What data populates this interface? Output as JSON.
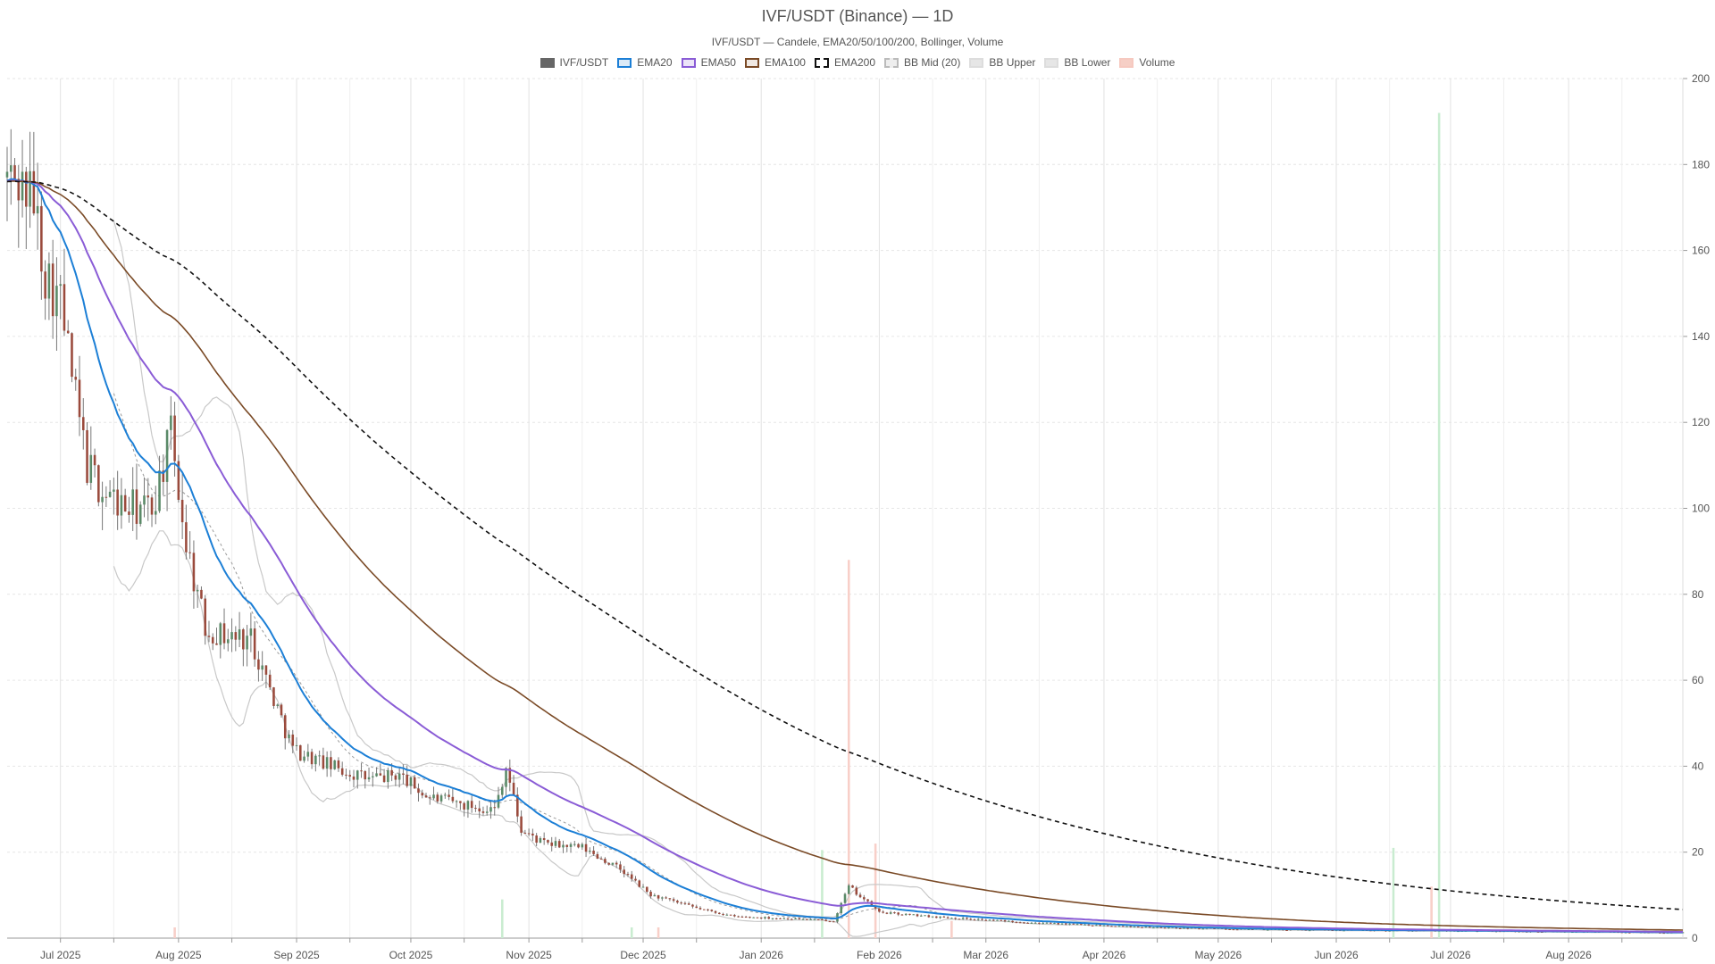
{
  "chart_data": {
    "type": "candlestick",
    "title": "IVF/USDT (Binance) — 1D",
    "subtitle": "IVF/USDT — Candele, EMA20/50/100/200, Bollinger, Volume",
    "ylim": [
      0,
      200
    ],
    "y_ticks": [
      "0",
      "20",
      "40",
      "60",
      "80",
      "100",
      "120",
      "140",
      "160",
      "180",
      "200"
    ],
    "x_range": [
      "2025-06-17",
      "2026-08-31"
    ],
    "x_ticks": [
      {
        "date": "2025-07-01",
        "label": "Jul 2025"
      },
      {
        "date": "2025-08-01",
        "label": "Aug 2025"
      },
      {
        "date": "2025-09-01",
        "label": "Sep 2025"
      },
      {
        "date": "2025-10-01",
        "label": "Oct 2025"
      },
      {
        "date": "2025-11-01",
        "label": "Nov 2025"
      },
      {
        "date": "2025-12-01",
        "label": "Dec 2025"
      },
      {
        "date": "2026-01-01",
        "label": "Jan 2026"
      },
      {
        "date": "2026-02-01",
        "label": "Feb 2026"
      },
      {
        "date": "2026-03-01",
        "label": "Mar 2026"
      },
      {
        "date": "2026-04-01",
        "label": "Apr 2026"
      },
      {
        "date": "2026-05-01",
        "label": "May 2026"
      },
      {
        "date": "2026-06-01",
        "label": "Jun 2026"
      },
      {
        "date": "2026-07-01",
        "label": "Jul 2026"
      },
      {
        "date": "2026-08-01",
        "label": "Aug 2026"
      }
    ],
    "legend": [
      {
        "name": "IVF/USDT",
        "color": "#666666",
        "fill": "#666666",
        "dash": false
      },
      {
        "name": "EMA20",
        "color": "#1c7fd6",
        "fill": "#dbeaf7",
        "dash": false
      },
      {
        "name": "EMA50",
        "color": "#8a5cd6",
        "fill": "#ece4f8",
        "dash": false
      },
      {
        "name": "EMA100",
        "color": "#7a4a26",
        "fill": "#f1e9e3",
        "dash": false
      },
      {
        "name": "EMA200",
        "color": "#111111",
        "fill": "#ffffff",
        "dash": true
      },
      {
        "name": "BB Mid (20)",
        "color": "#bbbbbb",
        "fill": "#eeeeee",
        "dash": true
      },
      {
        "name": "BB Upper",
        "color": "#dddddd",
        "fill": "#e6e6e6",
        "dash": false
      },
      {
        "name": "BB Lower",
        "color": "#dddddd",
        "fill": "#e6e6e6",
        "dash": false
      },
      {
        "name": "Volume",
        "color": "#f6c9c0",
        "fill": "#f6cfc6",
        "dash": false
      }
    ],
    "colors": {
      "up": "#5a8a68",
      "down": "#9a4a3c",
      "vol_up": "#c9ecd0",
      "vol_down": "#f8cfc8"
    },
    "candle_anchors": [
      [
        "2025-06-17",
        177
      ],
      [
        "2025-06-20",
        176
      ],
      [
        "2025-06-24",
        172
      ],
      [
        "2025-06-27",
        155
      ],
      [
        "2025-07-01",
        148
      ],
      [
        "2025-07-05",
        125
      ],
      [
        "2025-07-08",
        110
      ],
      [
        "2025-07-12",
        104
      ],
      [
        "2025-07-18",
        100
      ],
      [
        "2025-07-25",
        100
      ],
      [
        "2025-07-30",
        117
      ],
      [
        "2025-08-03",
        92
      ],
      [
        "2025-08-08",
        72
      ],
      [
        "2025-08-15",
        70
      ],
      [
        "2025-08-20",
        70
      ],
      [
        "2025-08-25",
        58
      ],
      [
        "2025-08-31",
        44
      ],
      [
        "2025-09-10",
        40
      ],
      [
        "2025-09-20",
        37
      ],
      [
        "2025-09-28",
        38
      ],
      [
        "2025-10-05",
        33
      ],
      [
        "2025-10-15",
        31
      ],
      [
        "2025-10-23",
        30
      ],
      [
        "2025-10-26",
        40
      ],
      [
        "2025-10-30",
        25
      ],
      [
        "2025-11-05",
        22
      ],
      [
        "2025-11-15",
        21
      ],
      [
        "2025-11-25",
        16
      ],
      [
        "2025-12-03",
        10
      ],
      [
        "2025-12-15",
        7
      ],
      [
        "2025-12-25",
        5
      ],
      [
        "2026-01-10",
        4.5
      ],
      [
        "2026-01-20",
        4
      ],
      [
        "2026-01-24",
        12
      ],
      [
        "2026-02-01",
        6
      ],
      [
        "2026-02-15",
        5
      ],
      [
        "2026-03-15",
        3.5
      ],
      [
        "2026-04-15",
        2.5
      ],
      [
        "2026-05-15",
        2
      ],
      [
        "2026-06-15",
        1.8
      ],
      [
        "2026-07-15",
        1.6
      ],
      [
        "2026-08-15",
        1.4
      ],
      [
        "2026-08-31",
        1.3
      ]
    ],
    "ema_seed": 176,
    "ema_periods": [
      20,
      50,
      100,
      200
    ],
    "bb_period": 20,
    "bb_start": "2025-07-15",
    "volume_spikes": [
      {
        "date": "2025-07-31",
        "value": 2.5,
        "up": false
      },
      {
        "date": "2025-10-25",
        "value": 9,
        "up": true
      },
      {
        "date": "2025-11-28",
        "value": 2.5,
        "up": true
      },
      {
        "date": "2025-12-05",
        "value": 2.5,
        "up": false
      },
      {
        "date": "2026-01-17",
        "value": 20.5,
        "up": true
      },
      {
        "date": "2026-01-24",
        "value": 88,
        "up": false
      },
      {
        "date": "2026-01-31",
        "value": 22,
        "up": false
      },
      {
        "date": "2026-02-20",
        "value": 4,
        "up": false
      },
      {
        "date": "2026-06-16",
        "value": 21,
        "up": true
      },
      {
        "date": "2026-06-26",
        "value": 12,
        "up": false
      },
      {
        "date": "2026-06-28",
        "value": 192,
        "up": true
      }
    ]
  }
}
